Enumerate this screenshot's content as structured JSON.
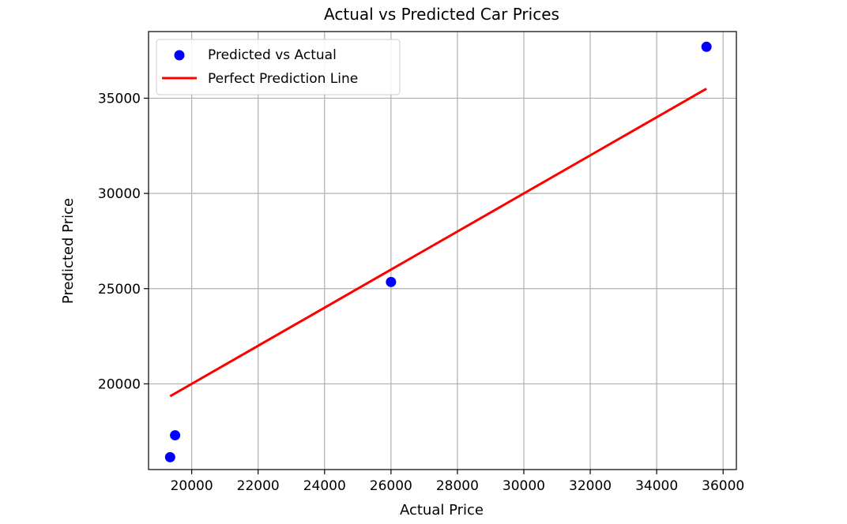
{
  "chart_data": {
    "type": "scatter",
    "title": "Actual vs Predicted Car Prices",
    "xlabel": "Actual Price",
    "ylabel": "Predicted Price",
    "xlim": [
      18700,
      36400
    ],
    "ylim": [
      15500,
      38500
    ],
    "xticks": [
      20000,
      22000,
      24000,
      26000,
      28000,
      30000,
      32000,
      34000,
      36000
    ],
    "yticks": [
      20000,
      25000,
      30000,
      35000
    ],
    "grid": true,
    "legend_position": "top-left",
    "series": [
      {
        "name": "Predicted vs Actual",
        "kind": "scatter",
        "color": "#0000ff",
        "points": [
          {
            "x": 35500,
            "y": 37700
          },
          {
            "x": 26000,
            "y": 25350
          },
          {
            "x": 19500,
            "y": 17300
          },
          {
            "x": 19350,
            "y": 16150
          }
        ]
      },
      {
        "name": "Perfect Prediction Line",
        "kind": "line",
        "color": "#ff0000",
        "points": [
          {
            "x": 19350,
            "y": 19350
          },
          {
            "x": 35500,
            "y": 35500
          }
        ]
      }
    ]
  }
}
